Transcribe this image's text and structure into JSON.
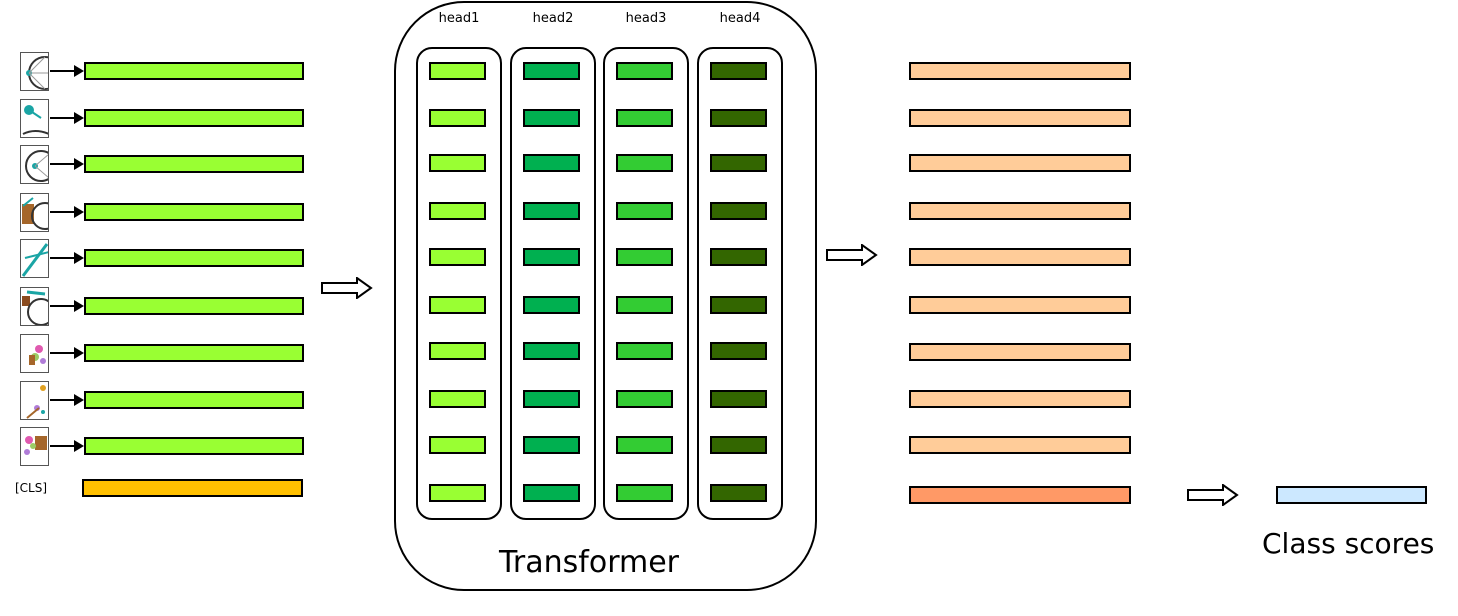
{
  "inputs": {
    "patch_count": 9,
    "cls_label": "[CLS]",
    "embedding_color": "#99ff33",
    "cls_color": "#ffc000"
  },
  "transformer": {
    "label": "Transformer",
    "heads": [
      {
        "label": "head1",
        "color": "#99ff33"
      },
      {
        "label": "head2",
        "color": "#00b050"
      },
      {
        "label": "head3",
        "color": "#33cc33"
      },
      {
        "label": "head4",
        "color": "#336600"
      }
    ],
    "rows_per_head": 10
  },
  "outputs": {
    "token_color": "#ffcc99",
    "cls_color": "#ff9966",
    "count": 10
  },
  "classifier": {
    "label": "Class scores",
    "color": "#cce8ff"
  }
}
